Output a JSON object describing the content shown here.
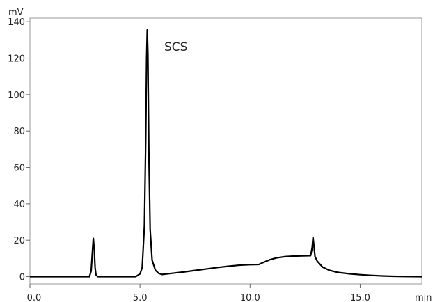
{
  "chart_data": {
    "type": "line",
    "ylabel": "mV",
    "xlabel": "min",
    "xlim": [
      0,
      17.8
    ],
    "ylim": [
      -4,
      142
    ],
    "x_ticks": [
      {
        "value": 0,
        "label": "0.0"
      },
      {
        "value": 5,
        "label": "5.0"
      },
      {
        "value": 10,
        "label": "10.0"
      },
      {
        "value": 15,
        "label": "15.0"
      }
    ],
    "y_ticks": [
      {
        "value": 0,
        "label": "0"
      },
      {
        "value": 20,
        "label": "20"
      },
      {
        "value": 40,
        "label": "40"
      },
      {
        "value": 60,
        "label": "60"
      },
      {
        "value": 80,
        "label": "80"
      },
      {
        "value": 100,
        "label": "100"
      },
      {
        "value": 120,
        "label": "120"
      },
      {
        "value": 140,
        "label": "140"
      }
    ],
    "grid": false,
    "annotations": [
      {
        "text": "SCS",
        "x": 6.1,
        "y": 124
      }
    ],
    "series": [
      {
        "color": "#000000",
        "x": [
          0.0,
          2.7,
          2.78,
          2.84,
          2.88,
          2.92,
          2.96,
          3.0,
          3.08,
          3.2,
          4.8,
          5.0,
          5.1,
          5.2,
          5.26,
          5.3,
          5.33,
          5.36,
          5.4,
          5.46,
          5.55,
          5.7,
          5.85,
          6.0,
          6.5,
          7.0,
          7.5,
          8.0,
          8.5,
          9.0,
          9.5,
          10.0,
          10.4,
          10.6,
          10.9,
          11.2,
          11.6,
          12.0,
          12.4,
          12.75,
          12.82,
          12.86,
          12.9,
          12.95,
          13.05,
          13.3,
          13.6,
          14.0,
          14.5,
          15.0,
          15.5,
          16.0,
          16.5,
          17.0,
          17.8
        ],
        "y": [
          0.0,
          0.0,
          3.0,
          14.0,
          21.0,
          15.0,
          5.0,
          1.0,
          0.0,
          0.0,
          0.0,
          1.5,
          5.0,
          28.0,
          75.0,
          120.0,
          135.5,
          122.0,
          70.0,
          26.0,
          9.0,
          3.5,
          1.8,
          1.2,
          1.9,
          2.6,
          3.4,
          4.2,
          5.0,
          5.7,
          6.3,
          6.6,
          6.7,
          7.8,
          9.3,
          10.3,
          11.0,
          11.3,
          11.4,
          11.5,
          16.0,
          21.5,
          17.0,
          11.0,
          8.5,
          5.2,
          3.5,
          2.3,
          1.6,
          1.1,
          0.7,
          0.4,
          0.2,
          0.1,
          0.0
        ]
      }
    ]
  }
}
